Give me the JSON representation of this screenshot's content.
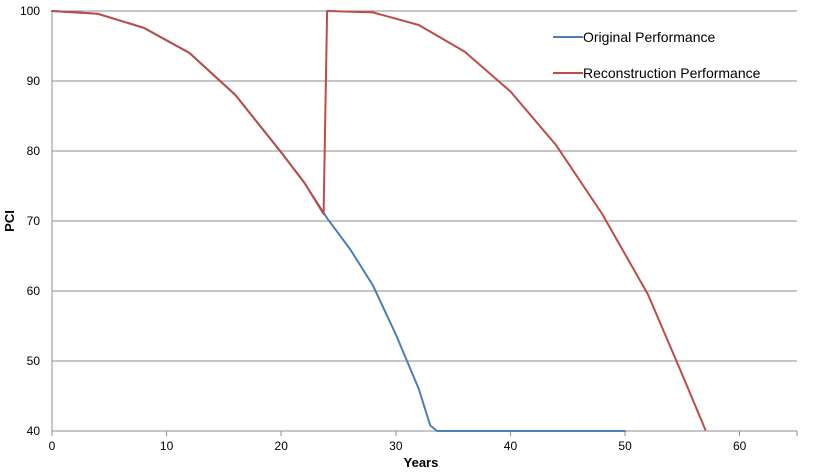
{
  "chart_data": {
    "type": "line",
    "title": "",
    "xlabel": "Years",
    "ylabel": "PCI",
    "xlim": [
      0,
      65
    ],
    "ylim": [
      40,
      100
    ],
    "xticks": [
      0,
      10,
      20,
      30,
      40,
      50,
      60
    ],
    "yticks": [
      40,
      50,
      60,
      70,
      80,
      90,
      100
    ],
    "x_tick_labels": [
      "0",
      "10",
      "20",
      "30",
      "40",
      "50",
      "60"
    ],
    "y_tick_labels": [
      "40",
      "50",
      "60",
      "70",
      "80",
      "90",
      "100"
    ],
    "grid": "horizontal",
    "legend_position": "top-right",
    "series": [
      {
        "name": "Original Performance",
        "color": "#4a7ebb",
        "points": [
          [
            0,
            100
          ],
          [
            4,
            99.6
          ],
          [
            8,
            97.6
          ],
          [
            12,
            94
          ],
          [
            16,
            88
          ],
          [
            20,
            79.8
          ],
          [
            22,
            75.5
          ],
          [
            24,
            70.4
          ],
          [
            26,
            66
          ],
          [
            28,
            60.8
          ],
          [
            30,
            53.8
          ],
          [
            32,
            46
          ],
          [
            33,
            40.8
          ],
          [
            33.6,
            40
          ],
          [
            40,
            40
          ],
          [
            50,
            40
          ]
        ]
      },
      {
        "name": "Reconstruction Performance",
        "color": "#be4b48",
        "points": [
          [
            0,
            100
          ],
          [
            4,
            99.6
          ],
          [
            8,
            97.6
          ],
          [
            12,
            94
          ],
          [
            16,
            88
          ],
          [
            20,
            79.8
          ],
          [
            22,
            75.5
          ],
          [
            23.7,
            71
          ],
          [
            24,
            100
          ],
          [
            24.1,
            100
          ],
          [
            28,
            99.8
          ],
          [
            32,
            98
          ],
          [
            36,
            94.2
          ],
          [
            40,
            88.5
          ],
          [
            44,
            80.8
          ],
          [
            48,
            71
          ],
          [
            52,
            59.5
          ],
          [
            55,
            48
          ],
          [
            57,
            40.2
          ]
        ]
      }
    ]
  }
}
